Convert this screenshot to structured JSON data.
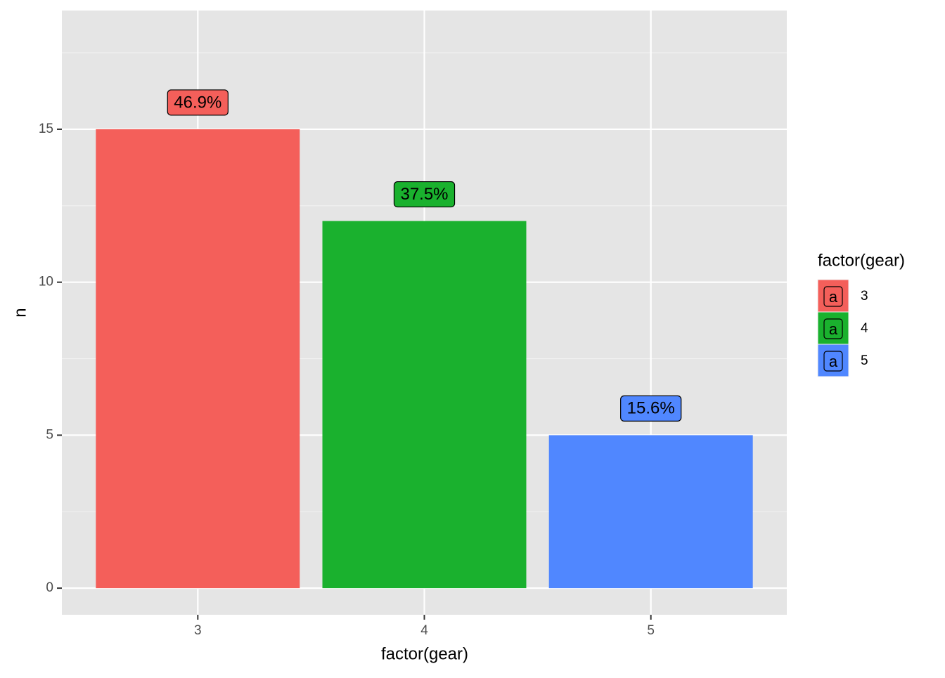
{
  "chart_data": {
    "type": "bar",
    "x_label": "factor(gear)",
    "y_label": "n",
    "categories": [
      "3",
      "4",
      "5"
    ],
    "values": [
      15,
      12,
      5
    ],
    "colors": [
      "#f45f5a",
      "#1ab12e",
      "#5087ff"
    ],
    "percent_labels": {
      "values": [
        46.9,
        37.5,
        15.6
      ],
      "value_labels": [
        "46.9%",
        "37.5%",
        "15.6%"
      ]
    },
    "ylim": [
      -0.87,
      18.88
    ],
    "yticks": [
      0,
      5,
      10,
      15
    ],
    "minor_yticks": [
      2.5,
      7.5,
      12.5,
      17.5
    ],
    "grid": true,
    "legend": {
      "title": "factor(gear)",
      "key_glyph": "a",
      "position": "right"
    }
  }
}
